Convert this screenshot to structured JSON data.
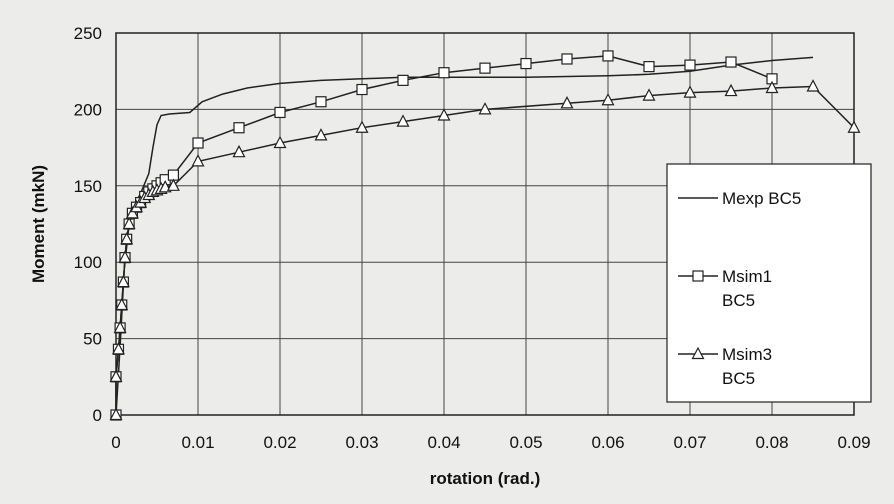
{
  "chart_data": {
    "type": "line",
    "title": "",
    "xlabel": "rotation (rad.)",
    "ylabel": "Moment (mkN)",
    "xlim": [
      0,
      0.09
    ],
    "ylim": [
      0,
      250
    ],
    "x_ticks": [
      "0",
      "0.01",
      "0.02",
      "0.03",
      "0.04",
      "0.05",
      "0.06",
      "0.07",
      "0.08",
      "0.09"
    ],
    "y_ticks": [
      "0",
      "50",
      "100",
      "150",
      "200",
      "250"
    ],
    "grid": true,
    "legend_position": "right",
    "series": [
      {
        "name": "Mexp BC5",
        "marker": "none",
        "points": [
          [
            0,
            0
          ],
          [
            0.0005,
            45
          ],
          [
            0.001,
            95
          ],
          [
            0.0015,
            120
          ],
          [
            0.002,
            135
          ],
          [
            0.003,
            145
          ],
          [
            0.004,
            158
          ],
          [
            0.0045,
            175
          ],
          [
            0.005,
            190
          ],
          [
            0.0055,
            196
          ],
          [
            0.0065,
            197
          ],
          [
            0.009,
            198
          ],
          [
            0.0105,
            205
          ],
          [
            0.013,
            210
          ],
          [
            0.016,
            214
          ],
          [
            0.02,
            217
          ],
          [
            0.025,
            219
          ],
          [
            0.03,
            220
          ],
          [
            0.035,
            221
          ],
          [
            0.04,
            221
          ],
          [
            0.05,
            221
          ],
          [
            0.06,
            222
          ],
          [
            0.065,
            223
          ],
          [
            0.07,
            225
          ],
          [
            0.075,
            229
          ],
          [
            0.08,
            232
          ],
          [
            0.085,
            234
          ]
        ]
      },
      {
        "name": "Msim1 BC5",
        "marker": "square",
        "points": [
          [
            0,
            0
          ],
          [
            0,
            25
          ],
          [
            0.0003,
            43
          ],
          [
            0.0005,
            57
          ],
          [
            0.0007,
            72
          ],
          [
            0.0009,
            87
          ],
          [
            0.0011,
            103
          ],
          [
            0.0013,
            115
          ],
          [
            0.0016,
            125
          ],
          [
            0.002,
            132
          ],
          [
            0.0025,
            136
          ],
          [
            0.003,
            139
          ],
          [
            0.0035,
            143
          ],
          [
            0.004,
            146
          ],
          [
            0.0045,
            148
          ],
          [
            0.005,
            150
          ],
          [
            0.0055,
            152
          ],
          [
            0.006,
            154
          ],
          [
            0.007,
            157
          ],
          [
            0.01,
            178
          ],
          [
            0.015,
            188
          ],
          [
            0.02,
            198
          ],
          [
            0.025,
            205
          ],
          [
            0.03,
            213
          ],
          [
            0.035,
            219
          ],
          [
            0.04,
            224
          ],
          [
            0.045,
            227
          ],
          [
            0.05,
            230
          ],
          [
            0.055,
            233
          ],
          [
            0.06,
            235
          ],
          [
            0.065,
            228
          ],
          [
            0.07,
            229
          ],
          [
            0.075,
            231
          ],
          [
            0.08,
            220
          ]
        ]
      },
      {
        "name": "Msim3 BC5",
        "marker": "triangle",
        "points": [
          [
            0,
            0
          ],
          [
            0,
            25
          ],
          [
            0.0003,
            43
          ],
          [
            0.0005,
            57
          ],
          [
            0.0007,
            72
          ],
          [
            0.0009,
            87
          ],
          [
            0.0011,
            103
          ],
          [
            0.0013,
            115
          ],
          [
            0.0016,
            125
          ],
          [
            0.002,
            132
          ],
          [
            0.0025,
            136
          ],
          [
            0.003,
            139
          ],
          [
            0.0035,
            142
          ],
          [
            0.004,
            144
          ],
          [
            0.0045,
            146
          ],
          [
            0.005,
            147
          ],
          [
            0.0055,
            148
          ],
          [
            0.006,
            149
          ],
          [
            0.007,
            150
          ],
          [
            0.01,
            166
          ],
          [
            0.015,
            172
          ],
          [
            0.02,
            178
          ],
          [
            0.025,
            183
          ],
          [
            0.03,
            188
          ],
          [
            0.035,
            192
          ],
          [
            0.04,
            196
          ],
          [
            0.045,
            200
          ],
          [
            0.055,
            204
          ],
          [
            0.06,
            206
          ],
          [
            0.065,
            209
          ],
          [
            0.07,
            211
          ],
          [
            0.075,
            212
          ],
          [
            0.08,
            214
          ],
          [
            0.085,
            215
          ],
          [
            0.09,
            188
          ]
        ]
      }
    ],
    "legend": [
      {
        "line1": "Mexp BC5",
        "line2": ""
      },
      {
        "line1": "Msim1",
        "line2": "BC5"
      },
      {
        "line1": "Msim3",
        "line2": "BC5"
      }
    ]
  }
}
